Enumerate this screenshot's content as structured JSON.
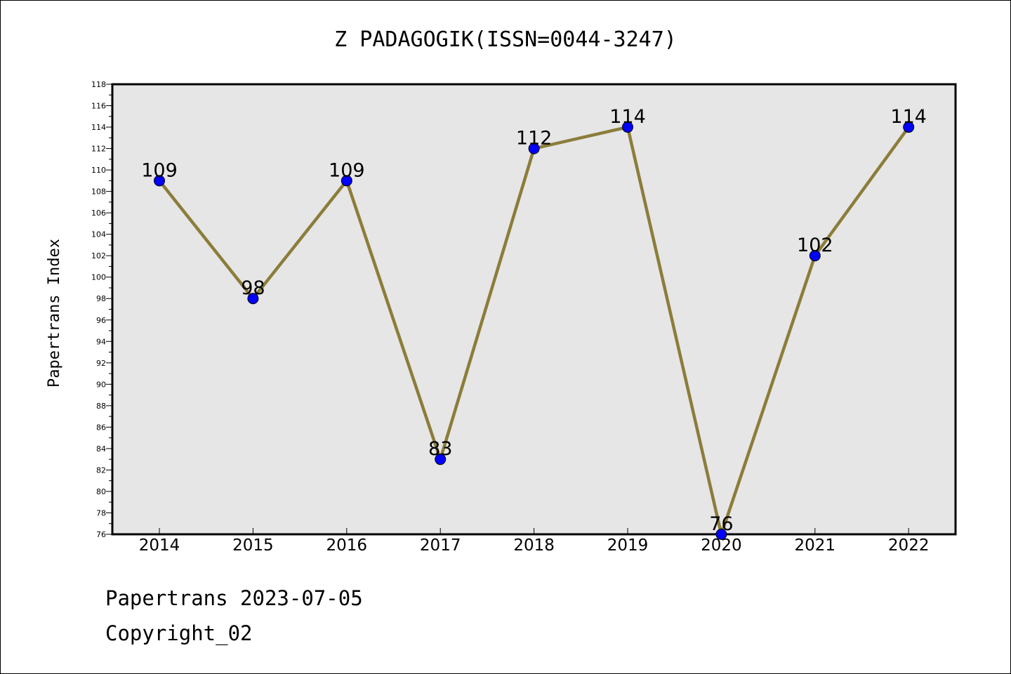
{
  "chart_data": {
    "type": "line",
    "title": "Z PADAGOGIK(ISSN=0044-3247)",
    "xlabel": "",
    "ylabel": "Papertrans Index",
    "categories": [
      "2014",
      "2015",
      "2016",
      "2017",
      "2018",
      "2019",
      "2020",
      "2021",
      "2022"
    ],
    "series": [
      {
        "values": [
          109,
          98,
          109,
          83,
          112,
          114,
          76,
          102,
          114
        ]
      }
    ],
    "data_labels": [
      "109",
      "98",
      "109",
      "83",
      "112",
      "114",
      "76",
      "102",
      "114"
    ],
    "ylim": [
      76,
      118
    ],
    "yticks": [
      "76",
      "78",
      "80",
      "82",
      "84",
      "86",
      "88",
      "90",
      "92",
      "94",
      "96",
      "98",
      "100",
      "102",
      "104",
      "106",
      "108",
      "110",
      "112",
      "114",
      "116",
      "118"
    ],
    "grid": false,
    "legend": "none",
    "colors": {
      "line": "#8B7D3A",
      "marker": "#0000FF",
      "plot_bg": "#E6E6E6"
    }
  },
  "footer": {
    "line1": "Papertrans 2023-07-05",
    "line2": "Copyright_02"
  }
}
